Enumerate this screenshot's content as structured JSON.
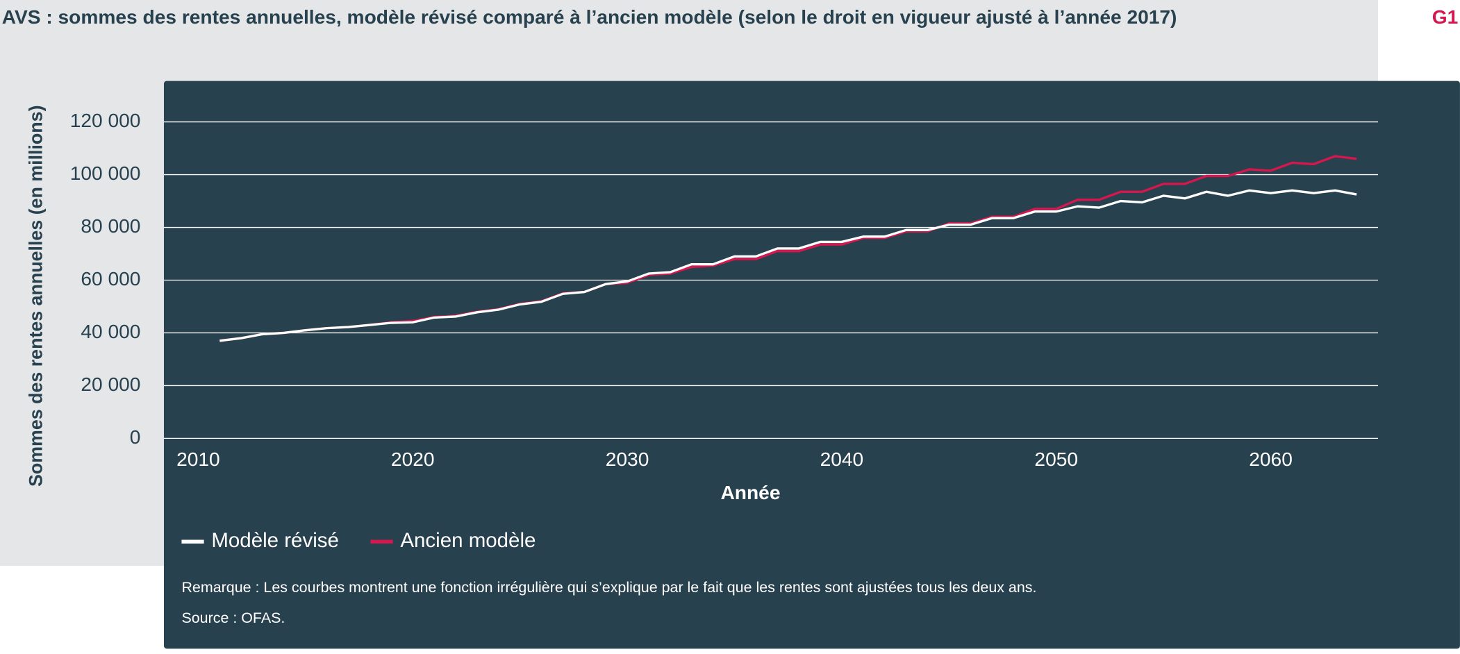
{
  "chart_data": {
    "type": "line",
    "title": "AVS : sommes des rentes annuelles, modèle révisé comparé à l’ancien modèle (selon le droit en vigueur ajusté à l’année 2017)",
    "figure_label": "G1",
    "xlabel": "Année",
    "ylabel": "Sommes des rentes annuelles (en millions)",
    "x": [
      2011,
      2012,
      2013,
      2014,
      2015,
      2016,
      2017,
      2018,
      2019,
      2020,
      2021,
      2022,
      2023,
      2024,
      2025,
      2026,
      2027,
      2028,
      2029,
      2030,
      2031,
      2032,
      2033,
      2034,
      2035,
      2036,
      2037,
      2038,
      2039,
      2040,
      2041,
      2042,
      2043,
      2044,
      2045,
      2046,
      2047,
      2048,
      2049,
      2050,
      2051,
      2052,
      2053,
      2054,
      2055,
      2056,
      2057,
      2058,
      2059,
      2060,
      2061,
      2062,
      2063,
      2064
    ],
    "series": [
      {
        "name": "Modèle révisé",
        "color": "#ffffff",
        "values": [
          37000,
          38000,
          39500,
          40000,
          41000,
          41800,
          42200,
          43000,
          43800,
          44000,
          45800,
          46200,
          47800,
          48800,
          50800,
          51800,
          54800,
          55500,
          58500,
          59500,
          62500,
          63000,
          66000,
          66000,
          69000,
          69000,
          72000,
          72000,
          74500,
          74500,
          76500,
          76500,
          79000,
          79000,
          81000,
          81000,
          83500,
          83500,
          86000,
          86000,
          88000,
          87500,
          90000,
          89500,
          92000,
          91000,
          93500,
          92000,
          94000,
          93000,
          94000,
          93000,
          94000,
          92500
        ]
      },
      {
        "name": "Ancien modèle",
        "color": "#d6174f",
        "values": [
          37000,
          38000,
          39500,
          40000,
          41000,
          41800,
          42200,
          43000,
          44000,
          44500,
          46000,
          46500,
          48000,
          49000,
          51000,
          52000,
          55000,
          55500,
          58500,
          59000,
          62000,
          62500,
          65000,
          65500,
          68000,
          68000,
          71000,
          71000,
          73500,
          73500,
          76000,
          76000,
          78500,
          78500,
          81500,
          81500,
          84000,
          84000,
          87000,
          87000,
          90500,
          90500,
          93500,
          93500,
          96500,
          96500,
          99500,
          99500,
          102000,
          101500,
          104500,
          104000,
          107000,
          106000
        ]
      }
    ],
    "xlim": [
      2008.4,
      2065
    ],
    "xticks": [
      2010,
      2020,
      2030,
      2040,
      2050,
      2060
    ],
    "ylim": [
      0,
      120000
    ],
    "yticks": [
      0,
      {
        "value": 20000,
        "label": "20 000"
      },
      {
        "value": 40000,
        "label": "40 000"
      },
      {
        "value": 60000,
        "label": "60 000"
      },
      {
        "value": 80000,
        "label": "80 000"
      },
      {
        "value": 100000,
        "label": "100 000"
      },
      {
        "value": 120000,
        "label": "120 000"
      }
    ],
    "grid": true,
    "note": "Remarque : Les courbes montrent une fonction irrégulière qui s’explique par le fait que les rentes sont ajustées tous les deux ans.",
    "source": "Source : OFAS."
  }
}
